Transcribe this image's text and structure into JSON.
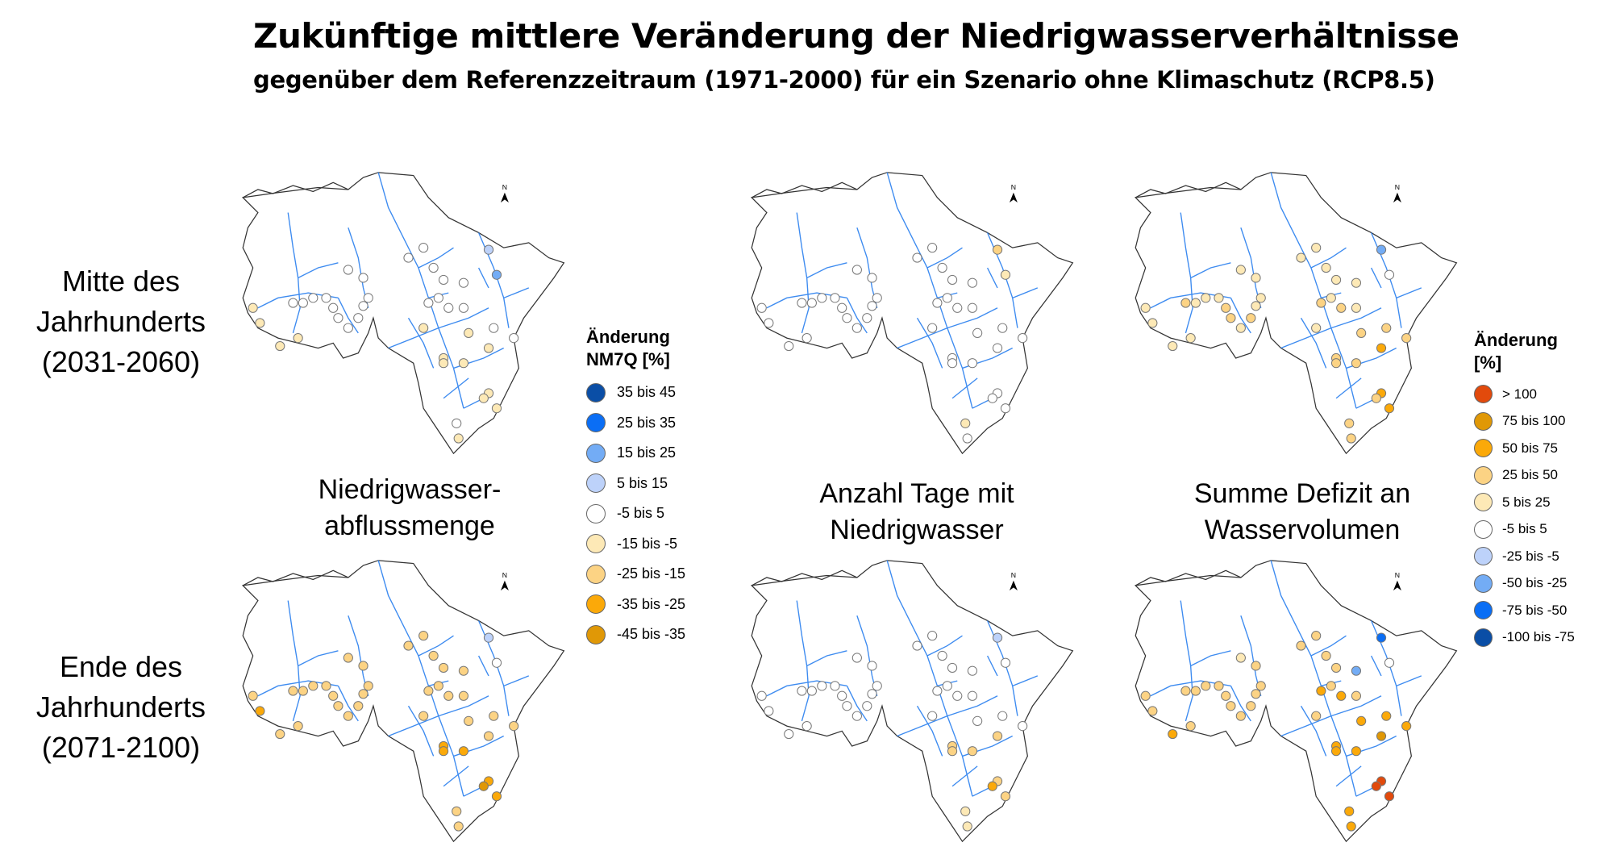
{
  "chart_data": {
    "type": "map-scatter",
    "title": "Zukünftige mittlere Veränderung der Niedrigwasserverhältnisse",
    "subtitle": "gegenüber dem Referenzzeitraum (1971-2000) für ein Szenario ohne Klimaschutz (RCP8.5)",
    "rows": [
      {
        "label_lines": [
          "Mitte des",
          "Jahrhunderts",
          "(2031-2060)"
        ]
      },
      {
        "label_lines": [
          "Ende des",
          "Jahrhunderts",
          "(2071-2100)"
        ]
      }
    ],
    "columns": [
      {
        "label_lines": [
          "Niedrigwasser-",
          "abflussmenge"
        ],
        "legend": 0
      },
      {
        "label_lines": [
          "Anzahl Tage mit",
          "Niedrigwasser"
        ],
        "legend": 1
      },
      {
        "label_lines": [
          "Summe Defizit an",
          "Wasservolumen"
        ],
        "legend": 1
      }
    ],
    "legends": [
      {
        "title_lines": [
          "Änderung",
          "NM7Q [%]"
        ],
        "classes": [
          {
            "label": "35 bis 45",
            "color": "#0a4ea6"
          },
          {
            "label": "25 bis 35",
            "color": "#0a6ef5"
          },
          {
            "label": "15 bis 25",
            "color": "#73acf5"
          },
          {
            "label": "5 bis 15",
            "color": "#bdd2fa"
          },
          {
            "label": "-5 bis 5",
            "color": "#ffffff"
          },
          {
            "label": "-15 bis -5",
            "color": "#fde9b6"
          },
          {
            "label": "-25 bis -15",
            "color": "#fcd384"
          },
          {
            "label": "-35 bis -25",
            "color": "#fba909"
          },
          {
            "label": "-45 bis -35",
            "color": "#e09806"
          }
        ]
      },
      {
        "title_lines": [
          "Änderung",
          "[%]"
        ],
        "classes": [
          {
            "label": "> 100",
            "color": "#e24a0c"
          },
          {
            "label": "75 bis 100",
            "color": "#e09806"
          },
          {
            "label": "50 bis 75",
            "color": "#fba909"
          },
          {
            "label": "25 bis 50",
            "color": "#fcd384"
          },
          {
            "label": "5 bis 25",
            "color": "#fde9b6"
          },
          {
            "label": "-5 bis 5",
            "color": "#ffffff"
          },
          {
            "label": "-25 bis -5",
            "color": "#bdd2fa"
          },
          {
            "label": "-50 bis -25",
            "color": "#73acf5"
          },
          {
            "label": "-75 bis -50",
            "color": "#0a6ef5"
          },
          {
            "label": "-100 bis -75",
            "color": "#0a4ea6"
          }
        ]
      }
    ],
    "north_arrow": "N",
    "station_classes": [
      [
        [
          5,
          5,
          5,
          4,
          4,
          4,
          4,
          4,
          4,
          4,
          4,
          4,
          4,
          4,
          4,
          4,
          3,
          2,
          4,
          4,
          4,
          5,
          5,
          5,
          4,
          4,
          5,
          5,
          5,
          4,
          5,
          5,
          5,
          5,
          4,
          4,
          4,
          4,
          5,
          4
        ],
        [
          5,
          5,
          5,
          5,
          5,
          5,
          5,
          5,
          5,
          5,
          5,
          5,
          5,
          5,
          5,
          5,
          3,
          4,
          5,
          5,
          5,
          5,
          5,
          5,
          5,
          5,
          5,
          5,
          5,
          4,
          5,
          5,
          5,
          5,
          5,
          5,
          5,
          5,
          5,
          5
        ],
        [
          4,
          4,
          4,
          3,
          4,
          4,
          4,
          3,
          4,
          3,
          4,
          4,
          4,
          4,
          4,
          4,
          7,
          5,
          3,
          4,
          4,
          3,
          3,
          3,
          3,
          3,
          2,
          2,
          3,
          3,
          3,
          3,
          4,
          2,
          4,
          4,
          3,
          4,
          4,
          3
        ]
      ],
      [
        [
          6,
          7,
          6,
          6,
          6,
          6,
          6,
          6,
          6,
          6,
          6,
          6,
          6,
          6,
          6,
          6,
          3,
          4,
          6,
          6,
          6,
          6,
          7,
          7,
          6,
          6,
          7,
          7,
          8,
          6,
          6,
          7,
          6,
          6,
          6,
          6,
          6,
          6,
          6,
          6
        ],
        [
          5,
          5,
          5,
          5,
          5,
          5,
          5,
          5,
          5,
          5,
          5,
          5,
          5,
          5,
          5,
          5,
          6,
          5,
          5,
          5,
          5,
          5,
          3,
          3,
          5,
          5,
          3,
          3,
          2,
          4,
          4,
          3,
          5,
          3,
          5,
          5,
          5,
          5,
          5,
          5
        ],
        [
          3,
          3,
          2,
          3,
          3,
          3,
          3,
          3,
          3,
          3,
          3,
          4,
          3,
          3,
          3,
          3,
          8,
          5,
          2,
          3,
          3,
          2,
          2,
          2,
          2,
          2,
          0,
          0,
          0,
          2,
          2,
          2,
          3,
          1,
          7,
          3,
          3,
          3,
          3,
          2
        ]
      ]
    ]
  }
}
